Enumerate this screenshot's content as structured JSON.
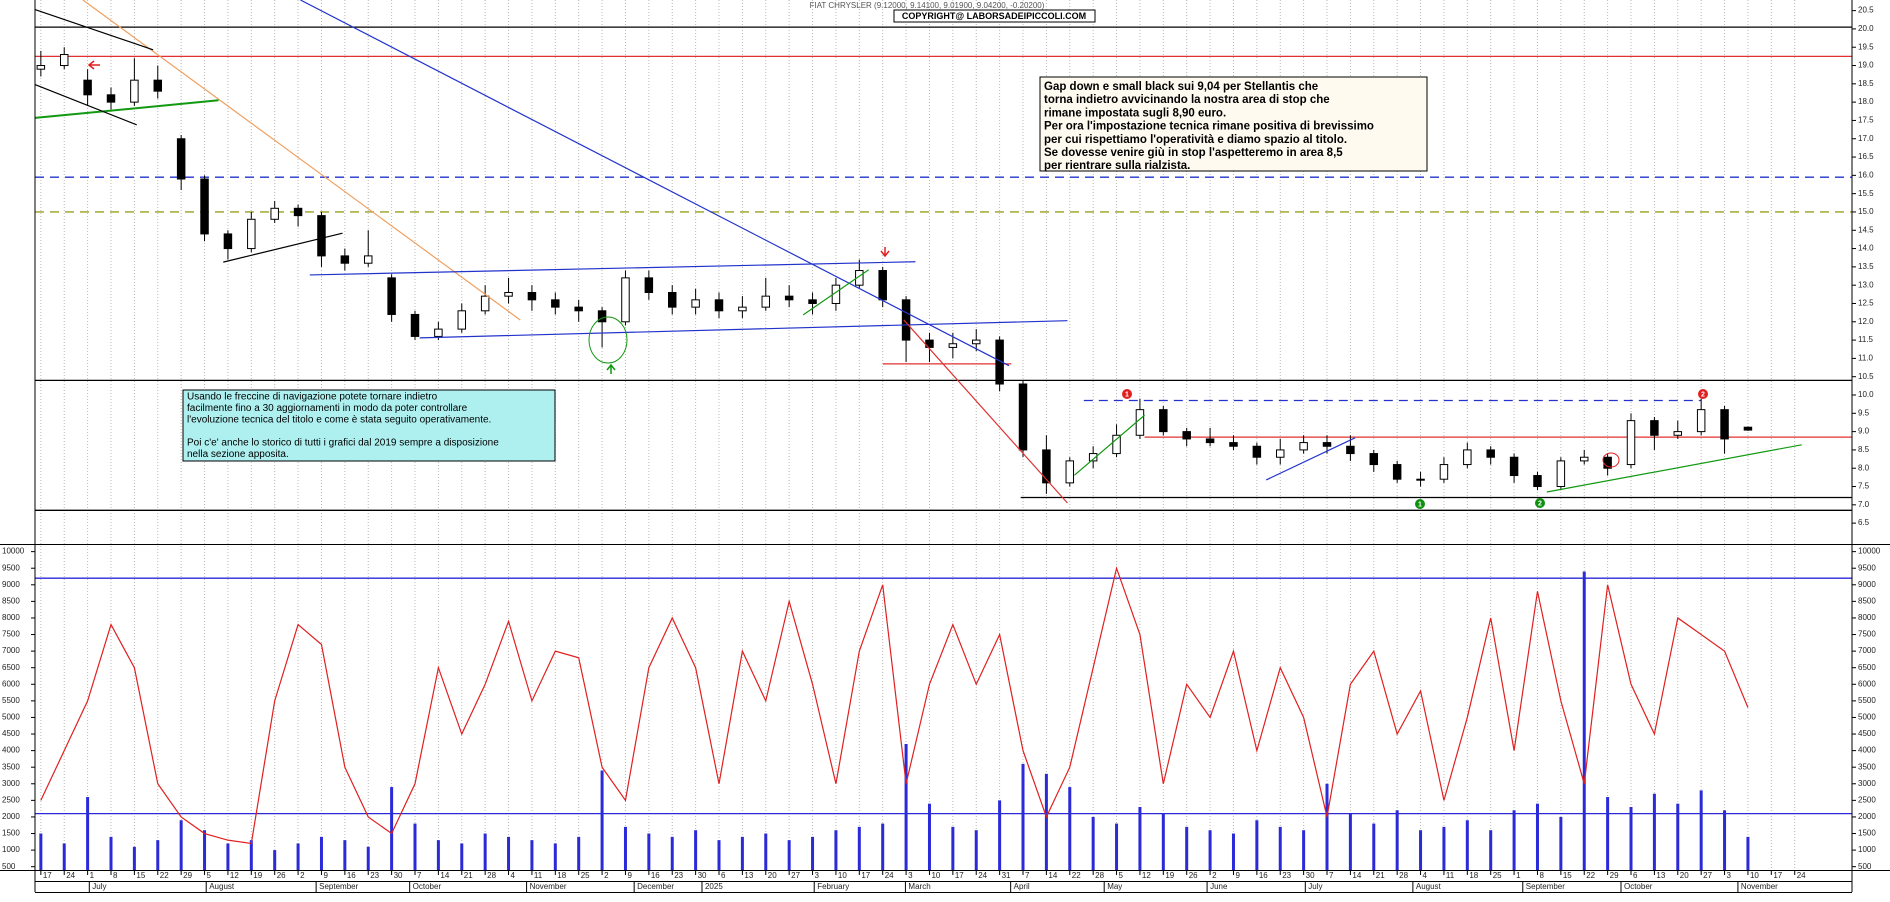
{
  "chart_data": [
    {
      "type": "candlestick",
      "title": "FIAT CHRYSLER (9.12000, 9.14100, 9.01900, 9.04200, -0.20200)",
      "subtitle": "COPYRIGHT@ LABORSADEIPICCOLI.COM",
      "categories": [
        "17",
        "24",
        "1",
        "8",
        "15",
        "22",
        "29",
        "5",
        "12",
        "19",
        "26",
        "2",
        "9",
        "16",
        "23",
        "30",
        "7",
        "14",
        "21",
        "28",
        "4",
        "11",
        "18",
        "25",
        "2",
        "9",
        "16",
        "23",
        "30",
        "6",
        "13",
        "20",
        "27",
        "3",
        "10",
        "17",
        "24",
        "3",
        "10",
        "17",
        "24",
        "31",
        "7",
        "14",
        "22",
        "28",
        "5",
        "12",
        "19",
        "26",
        "2",
        "9",
        "16",
        "23",
        "30",
        "7",
        "14",
        "21",
        "28",
        "4",
        "11",
        "18",
        "25",
        "1",
        "8",
        "15",
        "22",
        "29",
        "6",
        "13",
        "20",
        "27",
        "3",
        "10",
        "17",
        "24"
      ],
      "open": [
        18.9,
        19.0,
        18.6,
        18.2,
        18.0,
        18.6,
        17.0,
        15.9,
        14.4,
        14.0,
        14.8,
        15.1,
        14.9,
        13.8,
        13.6,
        13.2,
        12.2,
        11.6,
        11.8,
        12.3,
        12.7,
        12.8,
        12.6,
        12.4,
        12.3,
        12.0,
        13.2,
        12.8,
        12.4,
        12.6,
        12.3,
        12.4,
        12.7,
        12.6,
        12.5,
        13.0,
        13.4,
        12.6,
        11.5,
        11.3,
        11.4,
        11.5,
        10.3,
        8.5,
        7.6,
        8.2,
        8.4,
        8.9,
        9.6,
        9.0,
        8.8,
        8.7,
        8.6,
        8.3,
        8.5,
        8.7,
        8.6,
        8.4,
        8.1,
        7.7,
        7.7,
        8.1,
        8.5,
        8.3,
        7.8,
        7.5,
        8.2,
        8.3,
        8.1,
        9.3,
        8.9,
        9.0,
        9.6,
        9.12,
        null,
        null
      ],
      "high": [
        19.4,
        19.5,
        18.9,
        18.4,
        19.2,
        19.0,
        17.1,
        16.0,
        14.5,
        15.0,
        15.3,
        15.2,
        15.0,
        14.0,
        14.5,
        13.3,
        12.3,
        12.0,
        12.5,
        13.0,
        13.2,
        13.0,
        12.8,
        12.6,
        12.4,
        13.4,
        13.4,
        13.0,
        12.9,
        12.8,
        12.7,
        13.2,
        13.0,
        12.8,
        13.2,
        13.7,
        13.5,
        12.7,
        11.7,
        11.7,
        11.8,
        11.6,
        10.4,
        8.9,
        8.3,
        8.6,
        9.2,
        9.9,
        9.7,
        9.1,
        9.1,
        8.9,
        8.7,
        8.8,
        8.9,
        8.9,
        8.9,
        8.5,
        8.2,
        7.9,
        8.3,
        8.7,
        8.6,
        8.4,
        7.9,
        8.3,
        8.5,
        8.4,
        9.5,
        9.4,
        9.3,
        9.9,
        9.7,
        9.141,
        null,
        null
      ],
      "low": [
        18.7,
        18.9,
        17.9,
        17.8,
        17.9,
        18.1,
        15.6,
        14.2,
        13.7,
        13.9,
        14.7,
        14.6,
        13.5,
        13.4,
        13.5,
        12.0,
        11.5,
        11.5,
        11.7,
        12.2,
        12.5,
        12.3,
        12.2,
        12.0,
        11.3,
        11.9,
        12.6,
        12.2,
        12.2,
        12.1,
        12.1,
        12.3,
        12.4,
        12.2,
        12.3,
        12.9,
        12.4,
        10.9,
        10.9,
        11.0,
        11.2,
        10.1,
        8.3,
        7.3,
        7.5,
        8.0,
        8.3,
        8.8,
        8.9,
        8.6,
        8.6,
        8.5,
        8.1,
        8.1,
        8.4,
        8.4,
        8.2,
        7.9,
        7.6,
        7.5,
        7.6,
        8.0,
        8.1,
        7.6,
        7.4,
        7.4,
        8.1,
        7.8,
        8.0,
        8.5,
        8.8,
        8.9,
        8.4,
        9.019,
        null,
        null
      ],
      "close": [
        19.0,
        19.3,
        18.2,
        18.0,
        18.6,
        18.3,
        15.9,
        14.4,
        14.0,
        14.8,
        15.1,
        14.9,
        13.8,
        13.6,
        13.8,
        12.2,
        11.6,
        11.8,
        12.3,
        12.7,
        12.8,
        12.6,
        12.4,
        12.3,
        12.0,
        13.2,
        12.8,
        12.4,
        12.6,
        12.3,
        12.4,
        12.7,
        12.6,
        12.5,
        13.0,
        13.4,
        12.6,
        11.5,
        11.3,
        11.4,
        11.5,
        10.3,
        8.5,
        7.6,
        8.2,
        8.4,
        8.9,
        9.6,
        9.0,
        8.8,
        8.7,
        8.6,
        8.3,
        8.5,
        8.7,
        8.6,
        8.4,
        8.1,
        7.7,
        7.7,
        8.1,
        8.5,
        8.3,
        7.8,
        7.5,
        8.2,
        8.3,
        8.0,
        9.3,
        8.9,
        9.0,
        9.6,
        8.8,
        9.042,
        null,
        null
      ],
      "xlim": [
        -0.25,
        77.45
      ],
      "xticks": [
        {
          "value": 2.2,
          "label": "July"
        },
        {
          "value": 7.2,
          "label": "August"
        },
        {
          "value": 11.9,
          "label": "September"
        },
        {
          "value": 15.9,
          "label": "October"
        },
        {
          "value": 20.9,
          "label": "November"
        },
        {
          "value": 25.5,
          "label": "December"
        },
        {
          "value": 28.4,
          "label": "2025"
        },
        {
          "value": 33.2,
          "label": "February"
        },
        {
          "value": 37.1,
          "label": "March"
        },
        {
          "value": 41.6,
          "label": "April"
        },
        {
          "value": 45.6,
          "label": "May"
        },
        {
          "value": 50,
          "label": "June"
        },
        {
          "value": 54.2,
          "label": "July"
        },
        {
          "value": 58.8,
          "label": "August"
        },
        {
          "value": 63.5,
          "label": "September"
        },
        {
          "value": 67.7,
          "label": "October"
        },
        {
          "value": 72.7,
          "label": "November"
        }
      ],
      "ylim": [
        5.93,
        20.79
      ],
      "yticks": [
        20.5,
        {
          "value": 20,
          "label": "20.0"
        },
        19.5,
        {
          "value": 19,
          "label": "19.0"
        },
        18.5,
        {
          "value": 18,
          "label": "18.0"
        },
        17.5,
        {
          "value": 17,
          "label": "17.0"
        },
        16.5,
        {
          "value": 16,
          "label": "16.0"
        },
        15.5,
        {
          "value": 15,
          "label": "15.0"
        },
        14.5,
        {
          "value": 14,
          "label": "14.0"
        },
        13.5,
        {
          "value": 13,
          "label": "13.0"
        },
        12.5,
        {
          "value": 12,
          "label": "12.0"
        },
        11.5,
        {
          "value": 11,
          "label": "11.0"
        },
        10.5,
        {
          "value": 10,
          "label": "10.0"
        },
        9.5,
        {
          "value": 9,
          "label": "9.0"
        },
        8.5,
        {
          "value": 8,
          "label": "8.0"
        },
        7.5,
        {
          "value": 7,
          "label": "7.0"
        },
        6.5
      ],
      "grid": true,
      "levels": [
        {
          "value": 20.05,
          "color": "#000000"
        },
        {
          "value": 19.25,
          "color": "#e03030"
        },
        {
          "value": 15.95,
          "color": "#2233cc",
          "dash": true
        },
        {
          "value": 15.0,
          "color": "#99a020",
          "dash": true
        },
        {
          "value": 10.4,
          "color": "#000000"
        },
        {
          "value": 6.85,
          "color": "#000000"
        },
        {
          "value": 9.85,
          "color": "#2233cc",
          "dash": true,
          "x": [
            44.6,
            71
          ]
        },
        {
          "value": 8.85,
          "color": "#e03030",
          "x": [
            47.2,
            77.45
          ]
        },
        {
          "value": 7.2,
          "color": "#000000",
          "x": [
            41.9,
            77.45
          ]
        },
        {
          "value": 10.85,
          "color": "#e03030",
          "x": [
            36,
            41.5
          ]
        }
      ],
      "trendlines": [
        {
          "x": [
            11.1,
            41.4
          ],
          "y": [
            20.79,
            10.8
          ],
          "color": "#2233cc"
        },
        {
          "x": [
            1.8,
            20.5
          ],
          "y": [
            20.79,
            12.05
          ],
          "color": "#f0a060"
        },
        {
          "x": [
            11.5,
            37.4
          ],
          "y": [
            13.28,
            13.64
          ],
          "color": "#2233cc"
        },
        {
          "x": [
            16.2,
            43.9
          ],
          "y": [
            11.56,
            12.03
          ],
          "color": "#2233cc"
        },
        {
          "x": [
            -0.25,
            7.6
          ],
          "y": [
            17.57,
            18.05
          ],
          "color": "#119911",
          "width": 2
        },
        {
          "x": [
            36.9,
            43.9
          ],
          "y": [
            12.05,
            7.05
          ],
          "color": "#e03030"
        },
        {
          "x": [
            64.4,
            75.3
          ],
          "y": [
            7.35,
            8.64
          ],
          "color": "#119911"
        },
        {
          "x": [
            -0.25,
            4.8
          ],
          "y": [
            20.53,
            19.43
          ],
          "color": "#000000"
        },
        {
          "x": [
            -0.25,
            4.1
          ],
          "y": [
            18.48,
            17.38
          ],
          "color": "#000000"
        },
        {
          "x": [
            7.8,
            12.9
          ],
          "y": [
            13.63,
            14.42
          ],
          "color": "#000000"
        },
        {
          "x": [
            52.4,
            56.2
          ],
          "y": [
            7.68,
            8.83
          ],
          "color": "#2233cc"
        },
        {
          "x": [
            44.2,
            47.2
          ],
          "y": [
            7.81,
            9.45
          ],
          "color": "#119911"
        },
        {
          "x": [
            32.6,
            35.4
          ],
          "y": [
            12.19,
            13.42
          ],
          "color": "#119911"
        }
      ],
      "comment": [
        "Gap down e small black sui 9,04 per Stellantis che",
        "torna indietro avvicinando la nostra area di stop che",
        "rimane impostata sugli 8,90 euro.",
        "Per ora l'impostazione tecnica rimane positiva di brevissimo",
        "per cui rispettiamo l'operatività e diamo spazio al titolo.",
        "Se dovesse venire giù in stop l'aspetteremo in area 8,5",
        "per rientrare sulla rialzista."
      ],
      "info_box": [
        "Usando le freccine di navigazione potete tornare indietro",
        "facilmente fino a 30 aggiornamenti in modo da poter controllare",
        "l'evoluzione tecnica del titolo e come è stata seguito operativamente.",
        "Poi c'e' anche lo storico di tutti i grafici dal 2019 sempre a disposizione",
        "nella sezione apposita."
      ],
      "markers": [
        {
          "label": "1",
          "color": "#e02020"
        },
        {
          "label": "2",
          "color": "#e02020"
        },
        {
          "label": "1",
          "color": "#109010"
        },
        {
          "label": "2",
          "color": "#109010"
        }
      ]
    },
    {
      "type": "bar",
      "ylim": [
        400,
        10200
      ],
      "yticks": [
        10000,
        9500,
        9000,
        8500,
        8000,
        7500,
        7000,
        6500,
        6000,
        5500,
        5000,
        4500,
        4000,
        3500,
        3000,
        2500,
        2000,
        1500,
        1000,
        500
      ],
      "series": [
        {
          "type": "bar",
          "color": "#2a2ad8",
          "values": [
            1500,
            1200,
            2600,
            1400,
            1100,
            1300,
            1900,
            1600,
            1200,
            1300,
            1000,
            1200,
            1400,
            1300,
            1100,
            2900,
            1800,
            1300,
            1200,
            1500,
            1400,
            1300,
            1200,
            1400,
            3400,
            1700,
            1500,
            1400,
            1600,
            1300,
            1400,
            1500,
            1300,
            1400,
            1600,
            1700,
            1800,
            4200,
            2400,
            1700,
            1600,
            2500,
            3600,
            3300,
            2900,
            2000,
            1800,
            2300,
            2100,
            1700,
            1600,
            1500,
            1900,
            1700,
            1600,
            3000,
            2100,
            1800,
            2200,
            1600,
            1700,
            1900,
            1600,
            2200,
            2400,
            2000,
            9400,
            2600,
            2300,
            2700,
            2400,
            2800,
            2200,
            1400,
            null,
            null
          ]
        },
        {
          "type": "line",
          "color": "#e02020",
          "values": [
            2500,
            4000,
            5500,
            7800,
            6500,
            3000,
            2000,
            1500,
            1300,
            1200,
            5500,
            7800,
            7200,
            3500,
            2000,
            1500,
            3000,
            6500,
            4500,
            6000,
            7900,
            5500,
            7000,
            6800,
            3500,
            2500,
            6500,
            8000,
            6500,
            3000,
            7000,
            5500,
            8500,
            6000,
            3000,
            7000,
            9000,
            3000,
            6000,
            7800,
            6000,
            7500,
            4000,
            2000,
            3500,
            6500,
            9500,
            7500,
            3000,
            6000,
            5000,
            7000,
            4000,
            6500,
            5000,
            2000,
            6000,
            7000,
            4500,
            5800,
            2500,
            5000,
            8000,
            4000,
            8800,
            5500,
            3000,
            9000,
            6000,
            4500,
            8000,
            7500,
            7000,
            5300,
            null,
            null
          ]
        }
      ],
      "levels": [
        {
          "value": 9200,
          "color": "#2a2ad8"
        },
        {
          "value": 2100,
          "color": "#2a2ad8"
        }
      ]
    }
  ]
}
